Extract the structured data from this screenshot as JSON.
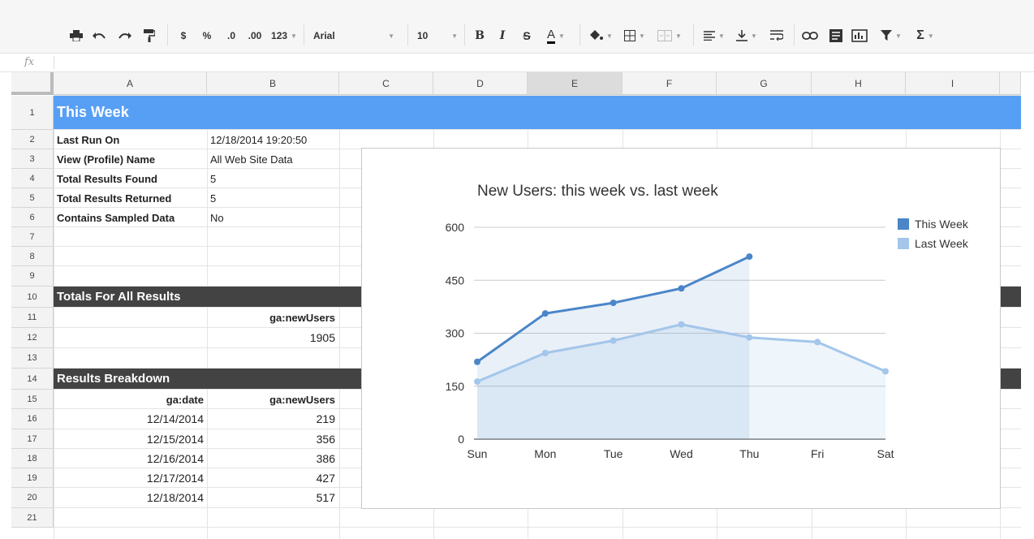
{
  "toolbar": {
    "currency": "$",
    "percent": "%",
    "decrease_decimal": ".0",
    "increase_decimal": ".00",
    "more_formats": "123",
    "font_name": "Arial",
    "font_size": "10",
    "bold": "B",
    "italic": "I",
    "strikethrough": "S",
    "text_color": "A",
    "sum": "Σ",
    "icons": [
      "print-icon",
      "undo-icon",
      "redo-icon",
      "paint-format-icon",
      "fill-color-icon",
      "borders-icon",
      "merge-icon",
      "align-icon",
      "valign-icon",
      "wrap-icon",
      "link-icon",
      "comment-icon",
      "chart-icon",
      "filter-icon",
      "functions-icon"
    ]
  },
  "formula_bar": {
    "fx": "fx",
    "value": ""
  },
  "columns": [
    "A",
    "B",
    "C",
    "D",
    "E",
    "F",
    "G",
    "H",
    "I"
  ],
  "selected_column": "E",
  "rows": [
    "1",
    "2",
    "3",
    "4",
    "5",
    "6",
    "7",
    "8",
    "9",
    "10",
    "11",
    "12",
    "13",
    "14",
    "15",
    "16",
    "17",
    "18",
    "19",
    "20",
    "21"
  ],
  "sheet": {
    "title": "This Week",
    "meta": [
      {
        "label": "Last Run On",
        "value": "12/18/2014 19:20:50"
      },
      {
        "label": "View (Profile) Name",
        "value": "All Web Site Data"
      },
      {
        "label": "Total Results Found",
        "value": "5"
      },
      {
        "label": "Total Results Returned",
        "value": "5"
      },
      {
        "label": "Contains Sampled Data",
        "value": "No"
      }
    ],
    "totals_header": "Totals For All Results",
    "totals_col": "ga:newUsers",
    "totals_value": "1905",
    "breakdown_header": "Results Breakdown",
    "breakdown_cols": [
      "ga:date",
      "ga:newUsers"
    ],
    "breakdown_rows": [
      [
        "12/14/2014",
        "219"
      ],
      [
        "12/15/2014",
        "356"
      ],
      [
        "12/16/2014",
        "386"
      ],
      [
        "12/17/2014",
        "427"
      ],
      [
        "12/18/2014",
        "517"
      ]
    ]
  },
  "colors": {
    "title_band": "#579ff5",
    "section_band": "#434343",
    "this_week": "#4a86c8",
    "last_week": "#a3c6ea"
  },
  "chart_data": {
    "type": "line",
    "title": "New Users: this week vs. last week",
    "categories": [
      "Sun",
      "Mon",
      "Tue",
      "Wed",
      "Thu",
      "Fri",
      "Sat"
    ],
    "series": [
      {
        "name": "This Week",
        "values": [
          219,
          356,
          386,
          427,
          517,
          null,
          null
        ]
      },
      {
        "name": "Last Week",
        "values": [
          163,
          244,
          279,
          325,
          288,
          275,
          192
        ]
      }
    ],
    "yticks": [
      "0",
      "150",
      "300",
      "450",
      "600"
    ],
    "ylim": [
      0,
      600
    ],
    "grid": true,
    "legend": "right",
    "area_fill": true
  }
}
